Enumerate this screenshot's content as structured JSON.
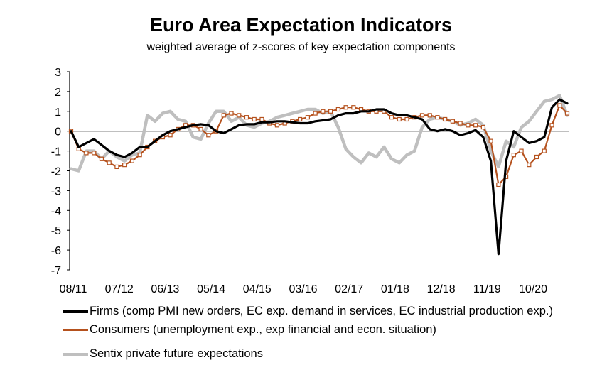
{
  "chart_data": {
    "type": "line",
    "title": "Euro Area Expectation Indicators",
    "subtitle": "weighted average of z-scores of key expectation components",
    "ylim": [
      -7,
      3
    ],
    "yticks": [
      3,
      2,
      1,
      0,
      -1,
      -2,
      -3,
      -4,
      -5,
      -6,
      -7
    ],
    "xtick_labels": [
      "08/11",
      "07/12",
      "06/13",
      "05/14",
      "04/15",
      "03/16",
      "02/17",
      "01/18",
      "12/18",
      "11/19",
      "10/20"
    ],
    "series": [
      {
        "name": "Firms (comp PMI new orders, EC exp. demand in services, EC industrial production exp.)",
        "color": "#000000",
        "values": [
          0.0,
          -0.8,
          -0.6,
          -0.4,
          -0.7,
          -1.0,
          -1.2,
          -1.3,
          -1.1,
          -0.8,
          -0.8,
          -0.5,
          -0.2,
          0.0,
          0.1,
          0.2,
          0.3,
          0.35,
          0.3,
          0.0,
          -0.1,
          0.1,
          0.3,
          0.35,
          0.35,
          0.45,
          0.45,
          0.5,
          0.5,
          0.45,
          0.4,
          0.4,
          0.5,
          0.55,
          0.6,
          0.8,
          0.9,
          0.9,
          1.0,
          1.0,
          1.1,
          1.1,
          0.9,
          0.8,
          0.8,
          0.7,
          0.6,
          0.1,
          0.0,
          0.1,
          0.0,
          -0.2,
          -0.1,
          0.05,
          -0.3,
          -1.5,
          -6.2,
          -1.5,
          0.0,
          -0.3,
          -0.6,
          -0.5,
          -0.3,
          1.2,
          1.6,
          1.4
        ]
      },
      {
        "name": "Consumers (unemployment exp., exp financial and econ. situation)",
        "color": "#b5511d",
        "values": [
          0.0,
          -0.9,
          -1.1,
          -1.1,
          -1.4,
          -1.6,
          -1.8,
          -1.7,
          -1.5,
          -1.2,
          -0.8,
          -0.5,
          -0.3,
          -0.2,
          0.1,
          0.3,
          0.3,
          0.1,
          -0.2,
          0.0,
          0.8,
          0.9,
          0.8,
          0.7,
          0.6,
          0.6,
          0.4,
          0.3,
          0.4,
          0.5,
          0.6,
          0.7,
          0.9,
          1.0,
          1.0,
          1.1,
          1.2,
          1.2,
          1.1,
          1.0,
          1.0,
          1.0,
          0.7,
          0.6,
          0.6,
          0.7,
          0.8,
          0.8,
          0.7,
          0.6,
          0.5,
          0.4,
          0.3,
          0.3,
          0.2,
          -0.5,
          -2.7,
          -2.3,
          -1.2,
          -1.0,
          -1.7,
          -1.3,
          -1.0,
          0.3,
          1.3,
          0.9
        ]
      },
      {
        "name": "Sentix private future expectations",
        "color": "#bfbfbf",
        "values": [
          -1.9,
          -2.0,
          -1.0,
          -1.0,
          -1.4,
          -1.0,
          -1.3,
          -1.5,
          -1.2,
          -1.1,
          0.8,
          0.5,
          0.9,
          1.0,
          0.6,
          0.5,
          -0.3,
          -0.4,
          0.4,
          1.0,
          1.0,
          0.5,
          0.7,
          0.3,
          0.2,
          0.4,
          0.5,
          0.7,
          0.8,
          0.9,
          1.0,
          1.1,
          1.1,
          0.9,
          1.0,
          0.2,
          -0.9,
          -1.3,
          -1.6,
          -1.1,
          -1.3,
          -0.8,
          -1.4,
          -1.6,
          -1.2,
          -1.0,
          0.2,
          0.6,
          0.7,
          0.6,
          0.5,
          0.3,
          0.4,
          0.6,
          0.3,
          -1.0,
          -1.8,
          -0.5,
          -0.8,
          0.2,
          0.5,
          1.0,
          1.5,
          1.6,
          1.8,
          0.8
        ]
      }
    ],
    "legend_placement": "bottom",
    "grid": false
  }
}
